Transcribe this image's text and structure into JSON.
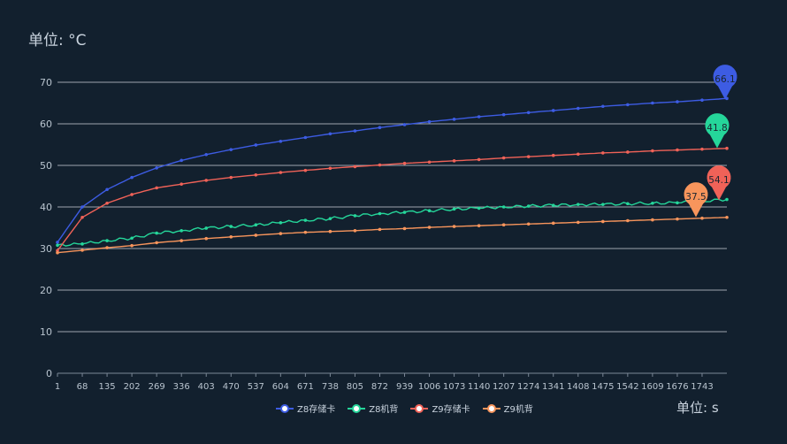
{
  "chart_data": {
    "type": "line",
    "y_unit_label": "单位: °C",
    "x_unit_label": "单位: s",
    "ylim": [
      0,
      70
    ],
    "yticks": [
      0,
      10,
      20,
      30,
      40,
      50,
      60,
      70
    ],
    "xlim": [
      1,
      1810
    ],
    "xticks": [
      1,
      68,
      135,
      202,
      269,
      336,
      403,
      470,
      537,
      604,
      671,
      738,
      805,
      872,
      939,
      1006,
      1073,
      1140,
      1207,
      1274,
      1341,
      1408,
      1475,
      1542,
      1609,
      1676,
      1743
    ],
    "grid": true,
    "legend_position": "bottom",
    "series": [
      {
        "name": "Z8存储卡",
        "color": "#3d5ce3",
        "x": [
          1,
          68,
          135,
          202,
          269,
          336,
          403,
          470,
          537,
          604,
          671,
          738,
          805,
          872,
          939,
          1006,
          1073,
          1140,
          1207,
          1274,
          1341,
          1408,
          1475,
          1542,
          1609,
          1676,
          1743,
          1810
        ],
        "values": [
          31.5,
          40.0,
          44.2,
          47.1,
          49.4,
          51.2,
          52.6,
          53.8,
          54.9,
          55.8,
          56.7,
          57.6,
          58.3,
          59.1,
          59.8,
          60.5,
          61.1,
          61.7,
          62.2,
          62.7,
          63.2,
          63.7,
          64.2,
          64.6,
          65.0,
          65.3,
          65.7,
          66.1
        ],
        "max_label": "66.1"
      },
      {
        "name": "Z8机背",
        "color": "#25d69a",
        "x": [
          1,
          68,
          135,
          202,
          269,
          336,
          403,
          470,
          537,
          604,
          671,
          738,
          805,
          872,
          939,
          1006,
          1073,
          1140,
          1207,
          1274,
          1341,
          1408,
          1475,
          1542,
          1609,
          1676,
          1743,
          1810
        ],
        "values": [
          30.8,
          31.1,
          31.9,
          32.5,
          33.7,
          34.3,
          34.9,
          35.3,
          35.7,
          36.2,
          36.8,
          37.2,
          37.9,
          38.4,
          38.7,
          39.1,
          39.5,
          39.7,
          40.0,
          40.2,
          40.4,
          40.6,
          40.6,
          40.8,
          40.9,
          41.0,
          41.4,
          41.8
        ],
        "max_label": "41.8"
      },
      {
        "name": "Z9存储卡",
        "color": "#f06258",
        "x": [
          1,
          68,
          135,
          202,
          269,
          336,
          403,
          470,
          537,
          604,
          671,
          738,
          805,
          872,
          939,
          1006,
          1073,
          1140,
          1207,
          1274,
          1341,
          1408,
          1475,
          1542,
          1609,
          1676,
          1743,
          1810
        ],
        "values": [
          29.5,
          37.5,
          40.9,
          43.0,
          44.6,
          45.5,
          46.4,
          47.1,
          47.7,
          48.3,
          48.8,
          49.3,
          49.7,
          50.1,
          50.5,
          50.8,
          51.1,
          51.4,
          51.8,
          52.1,
          52.4,
          52.7,
          53.0,
          53.2,
          53.5,
          53.7,
          53.9,
          54.1
        ],
        "max_label": "54.1"
      },
      {
        "name": "Z9机背",
        "color": "#f8955c",
        "x": [
          1,
          68,
          135,
          202,
          269,
          336,
          403,
          470,
          537,
          604,
          671,
          738,
          805,
          872,
          939,
          1006,
          1073,
          1140,
          1207,
          1274,
          1341,
          1408,
          1475,
          1542,
          1609,
          1676,
          1743,
          1810
        ],
        "values": [
          29.0,
          29.6,
          30.2,
          30.7,
          31.4,
          31.9,
          32.4,
          32.8,
          33.2,
          33.6,
          33.9,
          34.1,
          34.3,
          34.6,
          34.8,
          35.1,
          35.3,
          35.5,
          35.7,
          35.9,
          36.1,
          36.3,
          36.5,
          36.7,
          36.9,
          37.1,
          37.3,
          37.5
        ],
        "max_label": "37.5"
      }
    ]
  }
}
